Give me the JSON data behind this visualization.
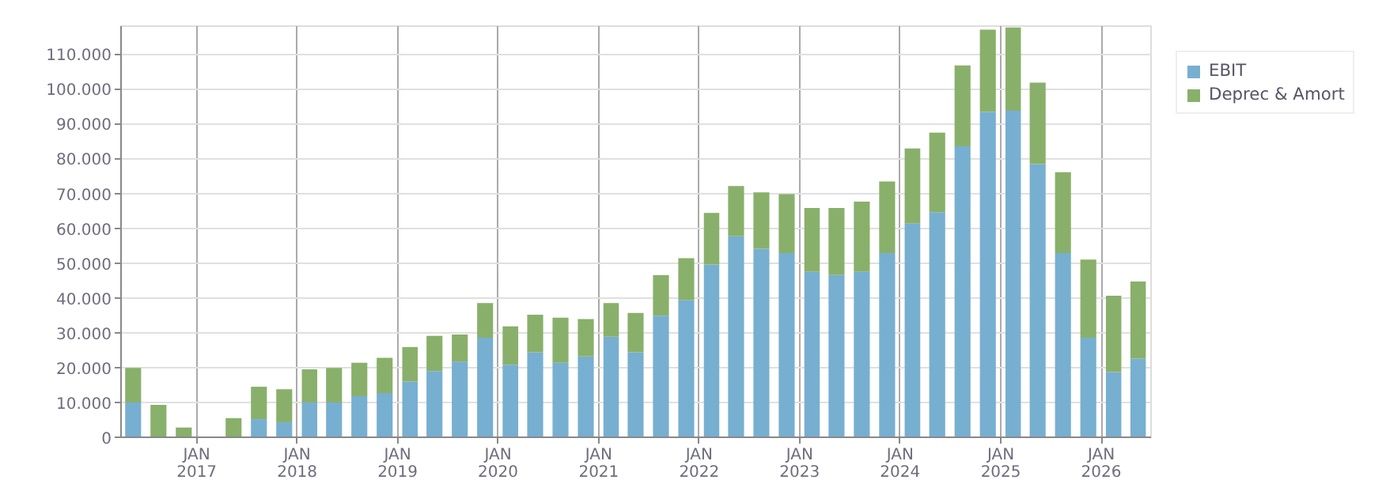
{
  "chart_data": {
    "type": "bar",
    "stacked": true,
    "x": [
      "2016-05-15",
      "2016-08-15",
      "2016-11-15",
      "2017-02-15",
      "2017-05-15",
      "2017-08-15",
      "2017-11-15",
      "2018-02-15",
      "2018-05-15",
      "2018-08-15",
      "2018-11-15",
      "2019-02-15",
      "2019-05-15",
      "2019-08-15",
      "2019-11-15",
      "2020-02-15",
      "2020-05-15",
      "2020-08-15",
      "2020-11-15",
      "2021-02-15",
      "2021-05-15",
      "2021-08-15",
      "2021-11-15",
      "2022-02-15",
      "2022-05-15",
      "2022-08-15",
      "2022-11-15",
      "2023-02-15",
      "2023-05-15",
      "2023-08-15",
      "2023-11-15",
      "2024-02-15",
      "2024-05-15",
      "2024-08-15",
      "2024-11-15",
      "2025-02-15",
      "2025-05-15",
      "2025-08-15",
      "2025-11-15",
      "2026-02-15",
      "2026-05-15"
    ],
    "series": [
      {
        "name": "EBIT",
        "color": "#77afd1",
        "values": [
          10000,
          0,
          0,
          0,
          0,
          5200,
          4300,
          10000,
          10000,
          11800,
          12700,
          16000,
          19000,
          21700,
          28600,
          20800,
          24400,
          21400,
          23200,
          28900,
          24400,
          34900,
          39400,
          49600,
          57700,
          54100,
          52900,
          47500,
          46600,
          47500,
          52900,
          61300,
          64600,
          83500,
          93400,
          93700,
          78400,
          52900,
          28600,
          18700,
          22600
        ]
      },
      {
        "name": "Deprec & Amort",
        "color": "#89b06a",
        "values": [
          9900,
          9300,
          2800,
          0,
          5500,
          9300,
          9500,
          9500,
          9900,
          9600,
          10100,
          9900,
          10100,
          7800,
          9900,
          11000,
          10800,
          12900,
          10700,
          9600,
          11300,
          11600,
          12000,
          14800,
          14400,
          16200,
          16900,
          18300,
          19200,
          20100,
          20500,
          21600,
          22800,
          23200,
          23600,
          23900,
          23400,
          23200,
          22400,
          21900,
          22100
        ]
      }
    ],
    "xlim": [
      "2016-04-01",
      "2026-07-01"
    ],
    "xticks": [
      {
        "value": "2017-01-01",
        "label": "JAN\n2017"
      },
      {
        "value": "2018-01-01",
        "label": "JAN\n2018"
      },
      {
        "value": "2019-01-01",
        "label": "JAN\n2019"
      },
      {
        "value": "2020-01-01",
        "label": "JAN\n2020"
      },
      {
        "value": "2021-01-01",
        "label": "JAN\n2021"
      },
      {
        "value": "2022-01-01",
        "label": "JAN\n2022"
      },
      {
        "value": "2023-01-01",
        "label": "JAN\n2023"
      },
      {
        "value": "2024-01-01",
        "label": "JAN\n2024"
      },
      {
        "value": "2025-01-01",
        "label": "JAN\n2025"
      },
      {
        "value": "2026-01-01",
        "label": "JAN\n2026"
      }
    ],
    "ylim": [
      0,
      118000
    ],
    "yticks": [
      0,
      {
        "value": 10000,
        "label": "10.000"
      },
      {
        "value": 20000,
        "label": "20.000"
      },
      {
        "value": 30000,
        "label": "30.000"
      },
      {
        "value": 40000,
        "label": "40.000"
      },
      {
        "value": 50000,
        "label": "50.000"
      },
      {
        "value": 60000,
        "label": "60.000"
      },
      {
        "value": 70000,
        "label": "70.000"
      },
      {
        "value": 80000,
        "label": "80.000"
      },
      {
        "value": 90000,
        "label": "90.000"
      },
      {
        "value": 100000,
        "label": "100.000"
      },
      {
        "value": 110000,
        "label": "110.000"
      }
    ],
    "grid": true,
    "legend": "top right"
  }
}
